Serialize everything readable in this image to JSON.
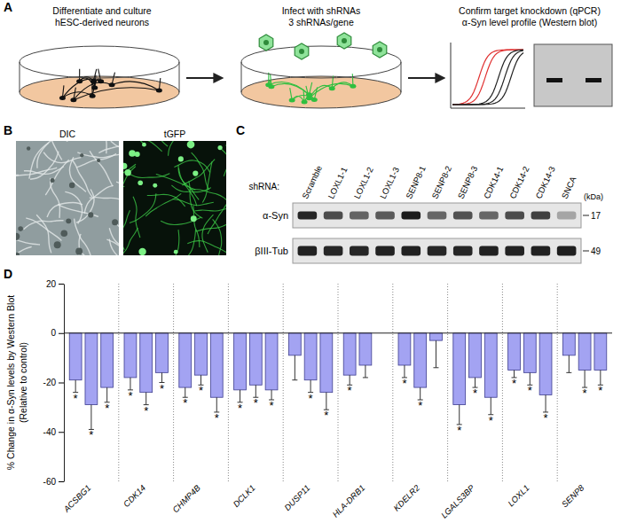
{
  "chart_data": {
    "type": "bar",
    "ylabel": [
      "% Change in α-Syn levels by Western Blot",
      "(Relative to control)"
    ],
    "categories": [
      "ACSBG1",
      "CDK14",
      "CHMP4B",
      "DCLK1",
      "DUSP11",
      "HLA-DRB1",
      "KDELR2",
      "LGALS3BP",
      "LOXL1",
      "SENP8"
    ],
    "series": [
      {
        "color": "#a3a3f2",
        "values": [
          -19,
          -18,
          -22,
          -23,
          -9,
          -17,
          -13,
          -29,
          -15,
          -9
        ],
        "errors": [
          5,
          5,
          4,
          5,
          10,
          4,
          5,
          8,
          3,
          7
        ],
        "significance": [
          "*",
          "*",
          "*",
          "*",
          null,
          "*",
          "*",
          "*",
          "*",
          null
        ]
      },
      {
        "color": "#a3a3f2",
        "values": [
          -29,
          -24,
          -17,
          -21,
          -19,
          -13,
          -22,
          -18,
          -16,
          -15
        ],
        "errors": [
          10,
          5,
          4,
          5,
          5,
          5,
          5,
          4,
          5,
          7
        ],
        "significance": [
          "*",
          "*",
          "*",
          "*",
          "*",
          null,
          "*",
          "*",
          "*",
          "*"
        ]
      },
      {
        "color": "#a3a3f2",
        "values": [
          -22,
          -16,
          -26,
          -23,
          -24,
          null,
          -3,
          -26,
          -25,
          -15
        ],
        "errors": [
          6,
          4,
          6,
          4,
          7,
          null,
          11,
          7,
          7,
          6
        ],
        "significance": [
          "*",
          "*",
          "*",
          "*",
          "*",
          null,
          null,
          "*",
          "*",
          "*"
        ]
      }
    ],
    "ylim": [
      -60,
      20
    ],
    "yticks": [
      20,
      0,
      -20,
      -40,
      -60
    ],
    "grid": false
  },
  "figure": {
    "panel_labels": [
      "A",
      "B",
      "C",
      "D"
    ],
    "schematic": {
      "steps": [
        {
          "lines": [
            "Differentiate and culture",
            "hESC-derived neurons"
          ]
        },
        {
          "lines": [
            "Infect with shRNAs",
            "3 shRNAs/gene"
          ]
        },
        {
          "lines": [
            "Confirm target knockdown (qPCR)",
            "α-Syn level profile (Western blot)"
          ]
        }
      ]
    },
    "images": {
      "titles": [
        "DIC",
        "tGFP"
      ]
    },
    "blot": {
      "lane_prefix": "shRNA:",
      "lanes": [
        "Scramble",
        "LOXL1-1",
        "LOXL1-2",
        "LOXL1-3",
        "SENP8-1",
        "SENP8-2",
        "SENP8-3",
        "CDK14-1",
        "CDK14-2",
        "CDK14-3",
        "SNCA"
      ],
      "unit_label": "(kDa)",
      "rows": [
        {
          "label": "α-Syn",
          "marker": 17,
          "intensity": [
            0.9,
            0.72,
            0.62,
            0.66,
            0.95,
            0.6,
            0.7,
            0.6,
            0.72,
            0.78,
            0.3
          ]
        },
        {
          "label": "βIII-Tub",
          "marker": 49,
          "intensity": [
            0.92,
            0.9,
            0.9,
            0.92,
            0.93,
            0.9,
            0.9,
            0.92,
            0.92,
            0.93,
            0.94
          ]
        }
      ]
    }
  }
}
